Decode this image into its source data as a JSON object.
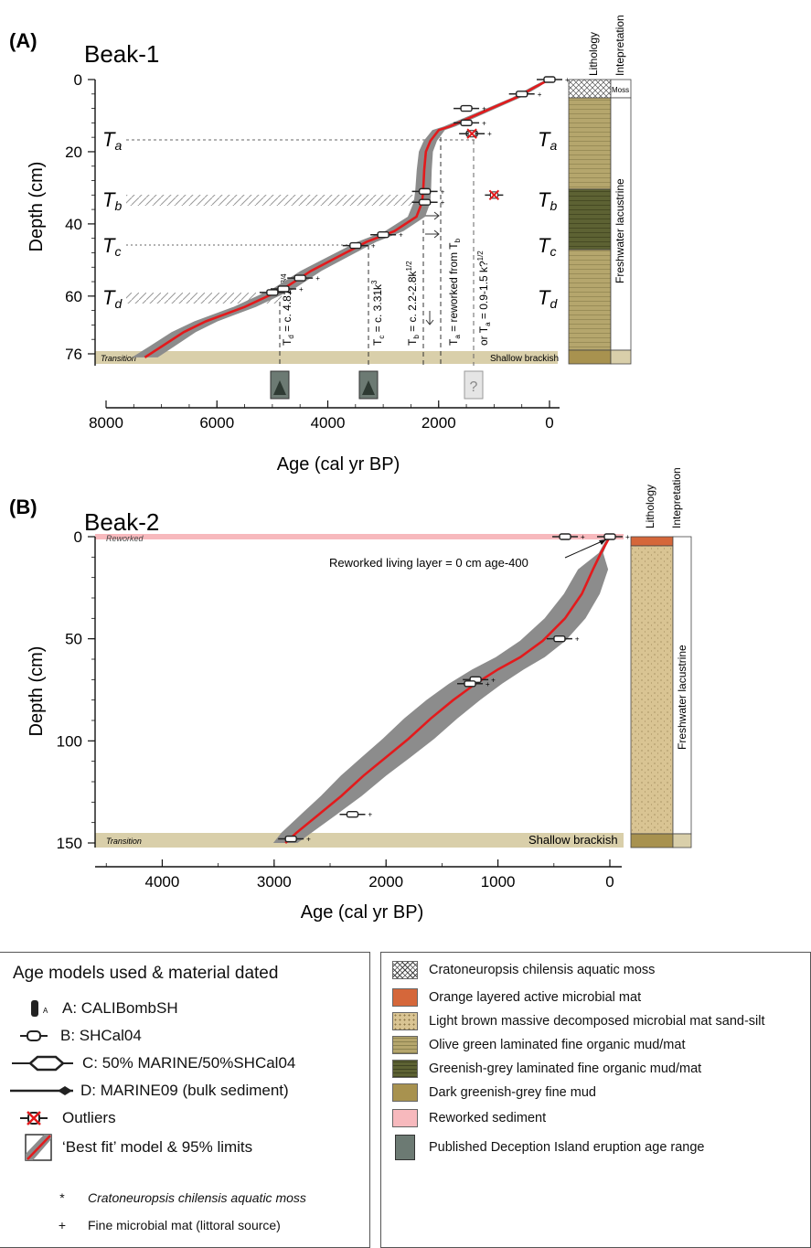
{
  "panel_a": {
    "label": "(A)",
    "site": "Beak-1",
    "ylabel": "Depth (cm)",
    "xlabel": "Age (cal yr BP)",
    "yticks": [
      "0",
      "20",
      "40",
      "60",
      "76"
    ],
    "xticks": [
      "8000",
      "6000",
      "4000",
      "2000",
      "0"
    ],
    "col_lithology": "Lithology",
    "col_interpretation": "Intepretation",
    "moss_label": "Moss",
    "interp_label": "Freshwater lacustrine",
    "shallow_label": "Shallow brackish",
    "transition_label": "Transition",
    "tephra_left": [
      "Ta",
      "Tb",
      "Tc",
      "Td"
    ],
    "annotations": {
      "td": "Td = c. 4.81k^3/4",
      "tc": "Tc = c. 3.31k^3",
      "tb": "Tb = c. 2.2-2.8k^1/2",
      "ta": "Ta = reworked from Tb",
      "ta_alt": "or Ta = 0.9-1.5 k?^1/2"
    },
    "question_mark": "?"
  },
  "panel_b": {
    "label": "(B)",
    "site": "Beak-2",
    "ylabel": "Depth (cm)",
    "xlabel": "Age (cal yr BP)",
    "yticks": [
      "0",
      "50",
      "100",
      "150"
    ],
    "xticks": [
      "4000",
      "3000",
      "2000",
      "1000",
      "0"
    ],
    "col_lithology": "Lithology",
    "col_interpretation": "Intepretation",
    "interp_label": "Freshwater lacustrine",
    "shallow_label": "Shallow brackish",
    "transition_label": "Transition",
    "reworked_label": "Reworked",
    "reworked_note": "Reworked living layer = 0 cm age-400"
  },
  "legend_left": {
    "title": "Age models used & material dated",
    "items": [
      {
        "symbol": "calibomb",
        "label": "A: CALIBombSH",
        "marker": "A"
      },
      {
        "symbol": "shcal",
        "label": "B: SHCal04"
      },
      {
        "symbol": "mixed",
        "label": "C: 50% MARINE/50%SHCal04"
      },
      {
        "symbol": "marine",
        "label": "D: MARINE09 (bulk sediment)"
      },
      {
        "symbol": "outlier",
        "label": "Outliers"
      },
      {
        "symbol": "bestfit",
        "label": "‘Best fit’ model & 95% limits"
      }
    ],
    "notes": [
      {
        "marker": "*",
        "label": "Cratoneuropsis chilensis aquatic moss"
      },
      {
        "marker": "+",
        "label": "Fine microbial mat (littoral source)"
      }
    ]
  },
  "legend_right": {
    "items": [
      {
        "swatch": "moss",
        "label": "Cratoneuropsis chilensis aquatic moss"
      },
      {
        "swatch": "orange",
        "label": "Orange layered active microbial mat"
      },
      {
        "swatch": "lightbrown",
        "label": "Light brown massive decomposed microbial mat  sand-silt"
      },
      {
        "swatch": "olive",
        "label": "Olive green laminated fine organic mud/mat"
      },
      {
        "swatch": "greenish",
        "label": "Greenish-grey laminated fine organic mud/mat"
      },
      {
        "swatch": "dark",
        "label": "Dark greenish-grey fine mud"
      },
      {
        "swatch": "pink",
        "label": "Reworked sediment"
      },
      {
        "swatch": "volcano",
        "label": "Published Deception Island eruption age range"
      }
    ]
  },
  "colors": {
    "model_line": "#e31a1c",
    "envelope": "#8c8c8c",
    "transition_band": "#d9cfaa",
    "reworked_band": "#f7b9bd",
    "olive": "#b5a66d",
    "greenish": "#5d6233",
    "light_brown": "#d9c493",
    "orange_mat": "#d5673a"
  },
  "chart_data": [
    {
      "type": "line",
      "title": "Beak-1",
      "xlabel": "Age (cal yr BP)",
      "ylabel": "Depth (cm)",
      "xlim": [
        8000,
        0
      ],
      "ylim": [
        76,
        0
      ],
      "series": [
        {
          "type": "line",
          "x": [
            0,
            250,
            600,
            900,
            1200,
            1500,
            1800,
            2000,
            2150,
            2230,
            2260,
            2280,
            2300,
            2400,
            2800,
            3300,
            3800,
            4300,
            4800,
            5500,
            6200,
            6600,
            7000,
            7300
          ],
          "y": [
            0,
            2,
            5,
            7,
            9,
            11,
            13,
            14,
            17,
            20,
            25,
            31,
            34,
            38,
            42,
            45,
            49,
            53,
            58,
            63,
            67,
            70,
            74,
            77
          ]
        }
      ],
      "dated_samples": [
        {
          "x": 0,
          "y": 0
        },
        {
          "x": 500,
          "y": 4
        },
        {
          "x": 1500,
          "y": 8
        },
        {
          "x": 1500,
          "y": 12
        },
        {
          "x": 1400,
          "y": 15
        },
        {
          "x": 2250,
          "y": 31
        },
        {
          "x": 2250,
          "y": 34
        },
        {
          "x": 3000,
          "y": 43
        },
        {
          "x": 3500,
          "y": 46
        },
        {
          "x": 4500,
          "y": 55
        },
        {
          "x": 4800,
          "y": 58
        },
        {
          "x": 5000,
          "y": 59
        }
      ],
      "outliers": [
        {
          "x": 1400,
          "y": 15
        },
        {
          "x": 1000,
          "y": 32
        }
      ],
      "tephra_ages": {
        "Ta_depth": 16,
        "Tb_depth": 33,
        "Tc_depth": 45,
        "Td_depth": 60
      }
    },
    {
      "type": "line",
      "title": "Beak-2",
      "xlabel": "Age (cal yr BP)",
      "ylabel": "Depth (cm)",
      "xlim": [
        4600,
        0
      ],
      "ylim": [
        150,
        0
      ],
      "series": [
        {
          "type": "line",
          "x": [
            0,
            80,
            150,
            250,
            400,
            600,
            800,
            1000,
            1200,
            1400,
            1600,
            1800,
            2000,
            2200,
            2400,
            2600,
            2800,
            2900
          ],
          "y": [
            0,
            8,
            16,
            28,
            40,
            51,
            59,
            65,
            72,
            80,
            89,
            99,
            108,
            117,
            127,
            136,
            145,
            150
          ]
        }
      ],
      "dated_samples": [
        {
          "x": 400,
          "y": 0
        },
        {
          "x": 0,
          "y": 0
        },
        {
          "x": 450,
          "y": 50
        },
        {
          "x": 1200,
          "y": 70
        },
        {
          "x": 1250,
          "y": 72
        },
        {
          "x": 2300,
          "y": 136
        },
        {
          "x": 2850,
          "y": 148
        }
      ]
    }
  ]
}
